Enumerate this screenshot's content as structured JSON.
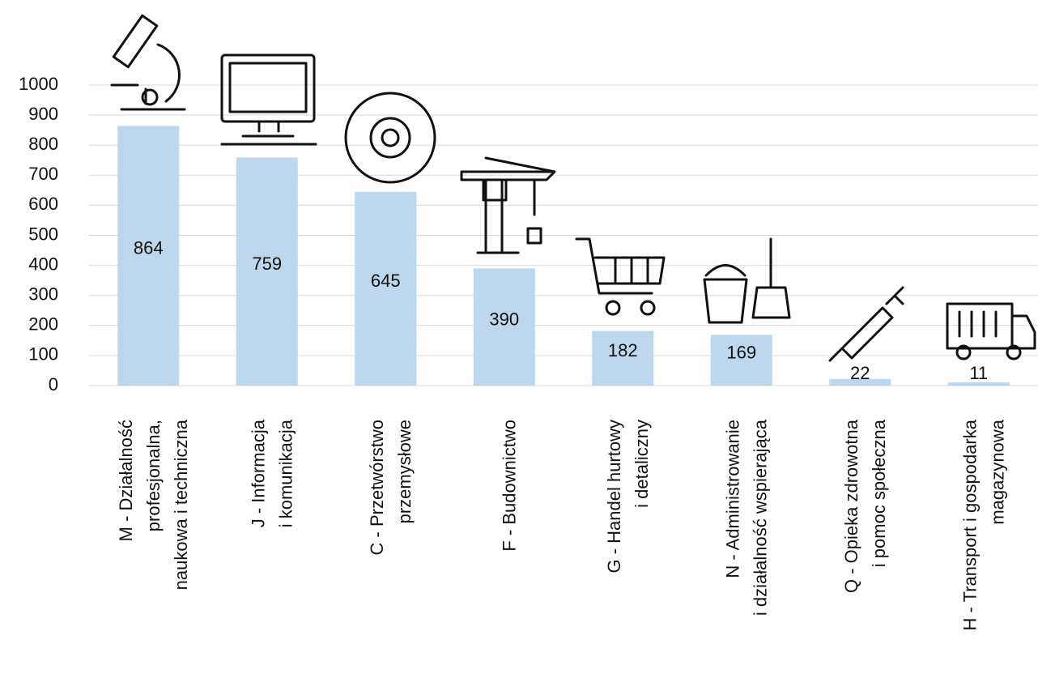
{
  "chart_data": {
    "type": "bar",
    "categories": [
      [
        "M - Działalność",
        "profesjonalna,",
        "naukowa i techniczna"
      ],
      [
        "J - Informacja",
        "i komunikacja"
      ],
      [
        "C - Przetwórstwo",
        "przemysłowe"
      ],
      [
        "F - Budownictwo"
      ],
      [
        "G - Handel hurtowy",
        "i detaliczny"
      ],
      [
        "N - Administrowanie",
        "i działalność wspierająca"
      ],
      [
        "Q - Opieka zdrowotna",
        "i pomoc społeczna"
      ],
      [
        "H - Transport i gospodarka",
        "magazynowa"
      ]
    ],
    "values": [
      864,
      759,
      645,
      390,
      182,
      169,
      22,
      11
    ],
    "color": "#bdd7ee",
    "ylim": [
      0,
      1000
    ],
    "yticks": [
      0,
      100,
      200,
      300,
      400,
      500,
      600,
      700,
      800,
      900,
      1000
    ],
    "grid": true
  }
}
